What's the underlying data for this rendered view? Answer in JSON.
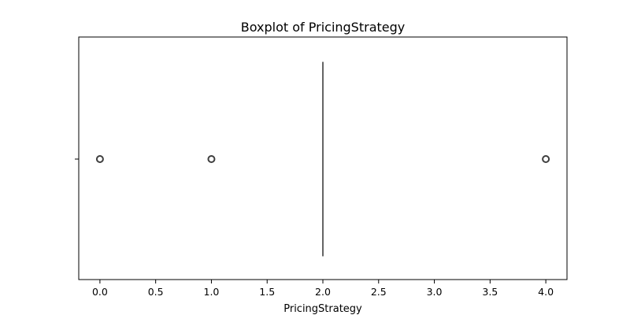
{
  "chart_data": {
    "type": "box",
    "title": "Boxplot of PricingStrategy",
    "xlabel": "PricingStrategy",
    "ylabel": "",
    "orientation": "horizontal",
    "xlim": [
      -0.19,
      4.19
    ],
    "xticks": [
      0.0,
      0.5,
      1.0,
      1.5,
      2.0,
      2.5,
      3.0,
      3.5,
      4.0
    ],
    "xtick_labels": [
      "0.0",
      "0.5",
      "1.0",
      "1.5",
      "2.0",
      "2.5",
      "3.0",
      "3.5",
      "4.0"
    ],
    "grid": false,
    "series": [
      {
        "name": "",
        "min": 2.0,
        "q1": 2.0,
        "median": 2.0,
        "q3": 2.0,
        "max": 2.0,
        "outliers": [
          0.0,
          1.0,
          4.0
        ]
      }
    ],
    "colors": {
      "box_edge": "#3f3f3f",
      "outlier_edge": "#3f3f3f",
      "axes": "#000000"
    }
  }
}
